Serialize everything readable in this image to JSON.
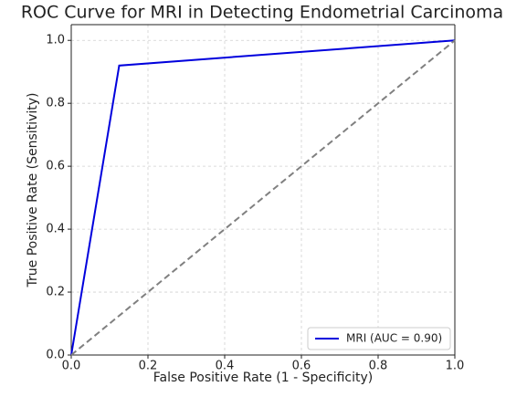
{
  "chart_data": {
    "type": "line",
    "title": "ROC Curve for MRI in Detecting Endometrial Carcinoma",
    "xlabel": "False Positive Rate (1 - Specificity)",
    "ylabel": "True Positive Rate (Sensitivity)",
    "series": [
      {
        "name": "MRI (AUC = 0.90)",
        "color": "#0000dd",
        "x": [
          0,
          0.125,
          1
        ],
        "values": [
          0,
          0.92,
          1
        ]
      },
      {
        "color": "#808080",
        "dashed": true,
        "x": [
          0,
          1
        ],
        "values": [
          0,
          1
        ]
      }
    ],
    "xlim": [
      0,
      1
    ],
    "ylim": [
      0,
      1.05
    ],
    "xticks": [
      {
        "value": 0,
        "label": "0.0"
      },
      0.2,
      0.4,
      0.6,
      0.8,
      {
        "value": 1,
        "label": "1.0"
      }
    ],
    "yticks": [
      {
        "value": 0,
        "label": "0.0"
      },
      0.2,
      0.4,
      0.6,
      0.8,
      {
        "value": 1,
        "label": "1.0"
      }
    ],
    "grid": true,
    "legend": "lower right"
  }
}
